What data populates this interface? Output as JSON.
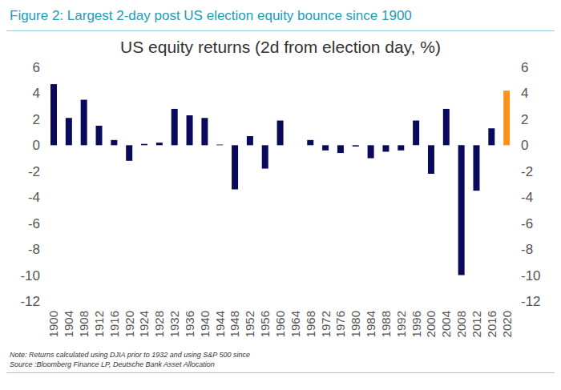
{
  "chart_data": {
    "type": "bar",
    "header": "Figure 2: Largest 2-day post US election equity bounce since 1900",
    "title": "US equity returns (2d from election day, %)",
    "categories": [
      "1900",
      "1904",
      "1908",
      "1912",
      "1916",
      "1920",
      "1924",
      "1928",
      "1932",
      "1936",
      "1940",
      "1944",
      "1948",
      "1952",
      "1956",
      "1960",
      "1964",
      "1968",
      "1972",
      "1976",
      "1980",
      "1984",
      "1988",
      "1992",
      "1996",
      "2000",
      "2004",
      "2008",
      "2012",
      "2016",
      "2020"
    ],
    "values": [
      4.7,
      2.1,
      3.5,
      1.5,
      0.4,
      -1.2,
      0.1,
      0.2,
      2.8,
      2.3,
      2.1,
      0.05,
      -3.4,
      0.7,
      -1.8,
      1.9,
      0.0,
      0.4,
      -0.4,
      -0.6,
      -0.1,
      -1.0,
      -0.5,
      -0.4,
      1.9,
      -2.2,
      2.8,
      -10.0,
      -3.5,
      1.3,
      4.2
    ],
    "colors": [
      "#0a0a5c",
      "#0a0a5c",
      "#0a0a5c",
      "#0a0a5c",
      "#0a0a5c",
      "#0a0a5c",
      "#0a0a5c",
      "#0a0a5c",
      "#0a0a5c",
      "#0a0a5c",
      "#0a0a5c",
      "#0a0a5c",
      "#0a0a5c",
      "#0a0a5c",
      "#0a0a5c",
      "#0a0a5c",
      "#0a0a5c",
      "#0a0a5c",
      "#0a0a5c",
      "#0a0a5c",
      "#0a0a5c",
      "#0a0a5c",
      "#0a0a5c",
      "#0a0a5c",
      "#0a0a5c",
      "#0a0a5c",
      "#0a0a5c",
      "#0a0a5c",
      "#0a0a5c",
      "#0a0a5c",
      "#f7941d"
    ],
    "ylim": [
      -12,
      6
    ],
    "yticks": [
      -12,
      -10,
      -8,
      -6,
      -4,
      -2,
      0,
      2,
      4,
      6
    ],
    "y2lim": [
      -12,
      6
    ],
    "y2ticks": [
      -12,
      -10,
      -8,
      -6,
      -4,
      -2,
      0,
      2,
      4,
      6
    ],
    "grid": false,
    "note": "Note: Returns calculated using DJIA prior to 1932 and using S&P 500 since",
    "source": "Source :Bloomberg Finance LP, Deutsche Bank Asset Allocation"
  }
}
